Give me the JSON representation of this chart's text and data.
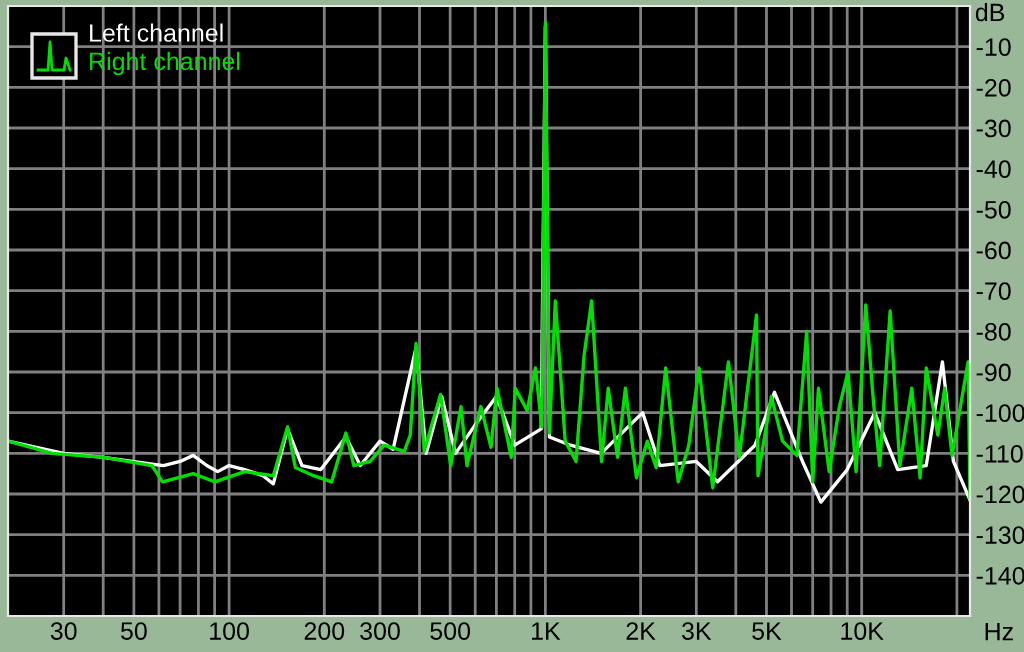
{
  "chart_data": {
    "type": "line",
    "xlabel": "Hz",
    "ylabel": "dB",
    "log": "x",
    "grid": true,
    "legend": "top left",
    "marker": "none",
    "line_style": "solid",
    "xlim": [
      20,
      22000
    ],
    "ylim": [
      -150,
      0
    ],
    "xticks": [
      30,
      {
        "value": 40,
        "label": null
      },
      50,
      {
        "value": 60,
        "label": null
      },
      {
        "value": 70,
        "label": null
      },
      {
        "value": 80,
        "label": null
      },
      {
        "value": 90,
        "label": null
      },
      100,
      200,
      300,
      {
        "value": 400,
        "label": null
      },
      500,
      {
        "value": 600,
        "label": null
      },
      {
        "value": 700,
        "label": null
      },
      {
        "value": 800,
        "label": null
      },
      {
        "value": 900,
        "label": null
      },
      {
        "value": 1000,
        "label": "1K"
      },
      {
        "value": 2000,
        "label": "2K"
      },
      {
        "value": 3000,
        "label": "3K"
      },
      {
        "value": 4000,
        "label": null
      },
      {
        "value": 5000,
        "label": "5K"
      },
      {
        "value": 6000,
        "label": null
      },
      {
        "value": 7000,
        "label": null
      },
      {
        "value": 8000,
        "label": null
      },
      {
        "value": 9000,
        "label": null
      },
      {
        "value": 10000,
        "label": "10K"
      },
      {
        "value": 20000,
        "label": null
      }
    ],
    "yticks": [
      -10,
      -20,
      -30,
      -40,
      -50,
      -60,
      -70,
      -80,
      -90,
      -100,
      -110,
      -120,
      -130,
      -140
    ],
    "series": [
      {
        "name": "Left channel",
        "color": "#ffffff",
        "x": [
          20,
          30,
          40,
          55,
          62,
          70,
          77,
          85,
          92,
          100,
          112,
          128,
          138,
          153,
          170,
          195,
          234,
          260,
          300,
          330,
          390,
          420,
          470,
          520,
          600,
          700,
          800,
          970,
          1000,
          1030,
          1200,
          1500,
          2030,
          2300,
          3000,
          3500,
          4600,
          5300,
          6500,
          7430,
          9000,
          11000,
          13000,
          16000,
          18000,
          19500,
          22000
        ],
        "values": [
          -107,
          -110,
          -111,
          -112.5,
          -113,
          -112,
          -110.5,
          -113,
          -114.5,
          -113,
          -114,
          -115.5,
          -117.5,
          -104,
          -113,
          -114,
          -106,
          -113,
          -107,
          -109,
          -84,
          -110,
          -96,
          -110,
          -103,
          -96,
          -108,
          -104,
          -5,
          -106,
          -108,
          -110,
          -100,
          -113,
          -112,
          -117,
          -108,
          -95,
          -112,
          -122,
          -114,
          -100,
          -114,
          -113,
          -87.5,
          -112,
          -121.5
        ]
      },
      {
        "name": "Right channel",
        "color": "#00e000",
        "x": [
          20,
          27.6,
          40.3,
          57,
          61.6,
          77,
          90,
          112,
          138,
          153,
          162,
          185,
          211,
          234,
          248,
          279,
          309,
          358,
          374,
          390,
          414,
          466,
          502,
          541,
          565,
          625,
          673,
          703,
          780,
          803,
          876,
          930,
          974,
          1000,
          1030,
          1075,
          1155,
          1250,
          1325,
          1400,
          1505,
          1580,
          1690,
          1790,
          1940,
          2100,
          2240,
          2400,
          2630,
          2840,
          3060,
          3380,
          3790,
          4100,
          4650,
          4700,
          5180,
          5620,
          6240,
          6700,
          7000,
          7300,
          7890,
          8500,
          9050,
          9600,
          10300,
          10900,
          11400,
          12300,
          13200,
          14400,
          15300,
          16000,
          17400,
          18300,
          19300,
          21700,
          22000
        ],
        "values": [
          -107,
          -110,
          -111,
          -113,
          -117,
          -115,
          -117,
          -114.5,
          -115.5,
          -103.5,
          -113.5,
          -115.5,
          -117,
          -105,
          -113,
          -112,
          -108,
          -109.5,
          -105.5,
          -83,
          -109.5,
          -95.5,
          -113,
          -98.5,
          -113,
          -98.5,
          -108.5,
          -94,
          -111,
          -94,
          -99.5,
          -89,
          -103.5,
          -4,
          -105,
          -72.5,
          -107,
          -112,
          -86,
          -72.5,
          -112,
          -94,
          -111,
          -94,
          -116,
          -107,
          -113.5,
          -89,
          -117,
          -108,
          -89,
          -118.5,
          -87.5,
          -111,
          -76,
          -115.5,
          -96,
          -107,
          -110.5,
          -80,
          -117,
          -94,
          -114.5,
          -98.5,
          -90,
          -114.5,
          -73.5,
          -97.5,
          -113,
          -75,
          -113,
          -94,
          -116,
          -89,
          -105.5,
          -94,
          -110.5,
          -87.5,
          -121
        ]
      }
    ]
  }
}
